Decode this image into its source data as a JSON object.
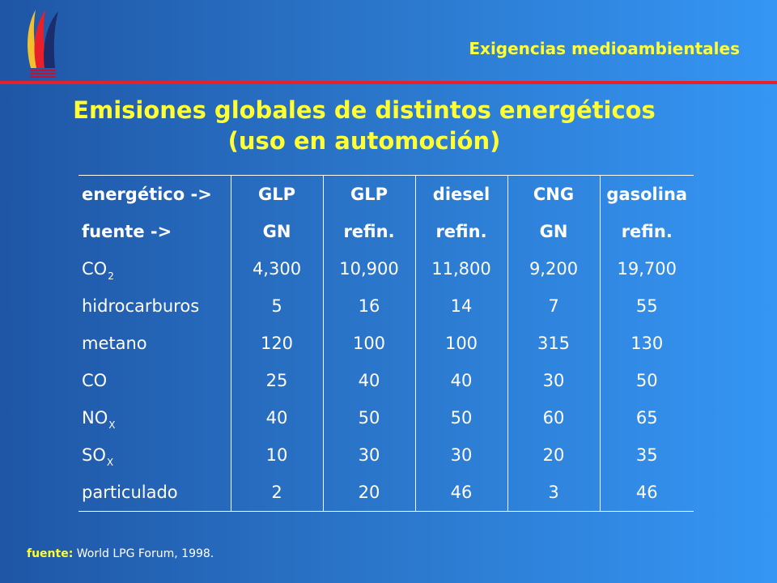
{
  "header": {
    "section_title": "Exigencias medioambientales"
  },
  "title": {
    "line1": "Emisiones globales de distintos energéticos",
    "line2": "(uso en automoción)"
  },
  "table": {
    "header_rows": [
      [
        "energético ->",
        "GLP",
        "GLP",
        "diesel",
        "CNG",
        "gasolina"
      ],
      [
        "fuente ->",
        "GN",
        "refin.",
        "refin.",
        "GN",
        "refin."
      ]
    ],
    "rows": [
      {
        "label": "CO",
        "sub": "2",
        "values": [
          "4,300",
          "10,900",
          "11,800",
          "9,200",
          "19,700"
        ]
      },
      {
        "label": "hidrocarburos",
        "values": [
          "5",
          "16",
          "14",
          "7",
          "55"
        ]
      },
      {
        "label": "metano",
        "values": [
          "120",
          "100",
          "100",
          "315",
          "130"
        ]
      },
      {
        "label": "CO",
        "values": [
          "25",
          "40",
          "40",
          "30",
          "50"
        ]
      },
      {
        "label": "NO",
        "sub": "X",
        "values": [
          "40",
          "50",
          "50",
          "60",
          "65"
        ]
      },
      {
        "label": "SO",
        "sub": "X",
        "values": [
          "10",
          "30",
          "30",
          "20",
          "35"
        ]
      },
      {
        "label": "particulado",
        "values": [
          "2",
          "20",
          "46",
          "3",
          "46"
        ]
      }
    ]
  },
  "footer": {
    "label": "fuente:",
    "text": "World LPG Forum, 1998."
  },
  "colors": {
    "accent_yellow": "#ffff33",
    "rule_red": "#e8202a",
    "bg_dark": "#1f56a6",
    "bg_light": "#3596f4"
  },
  "icons": {
    "logo": "flame-stripes-logo"
  }
}
